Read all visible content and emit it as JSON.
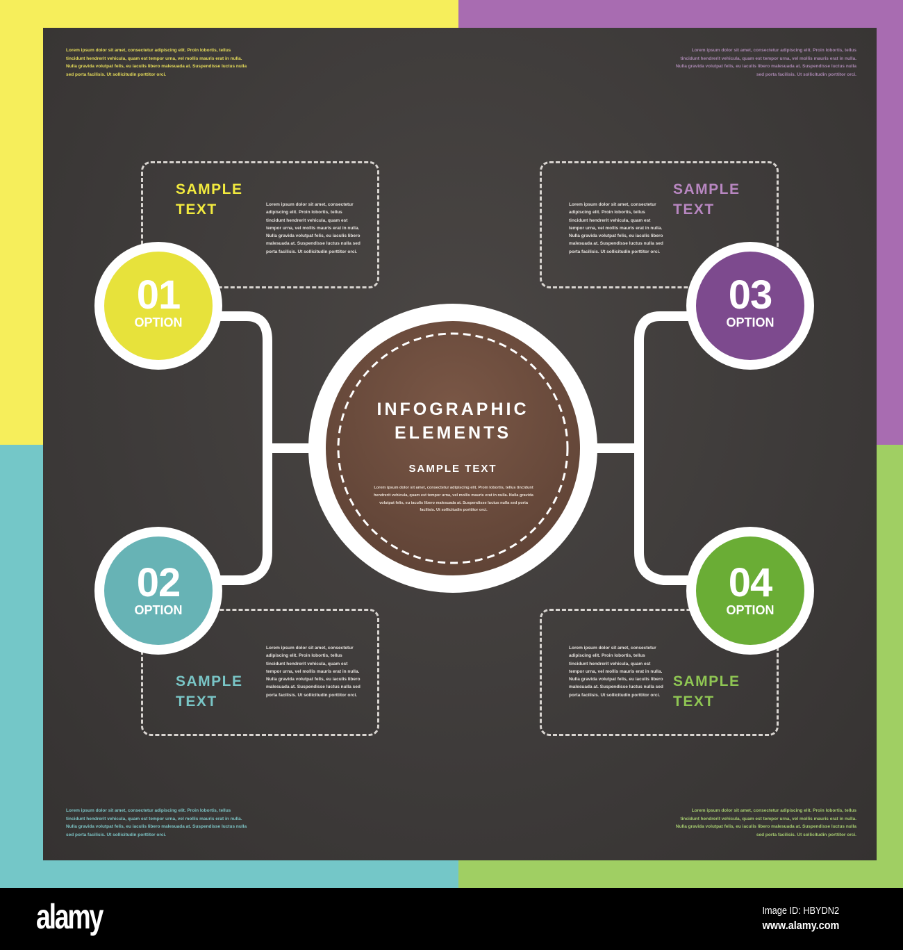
{
  "colors": {
    "yellow": "#f6ee5b",
    "purple": "#a86cb1",
    "teal": "#74c7c8",
    "green": "#a0cf63",
    "panel": "#3f3b3a",
    "center": "#6e4e3e"
  },
  "corners": {
    "top_left": "Lorem ipsum dolor sit amet, consectetur adipiscing elit. Proin lobortis, tellus tincidunt hendrerit vehicula, quam est tempor urna, vel mollis mauris erat in nulla. Nulla gravida volutpat felis, eu iaculis libero malesuada at. Suspendisse luctus nulla sed porta facilisis. Ut sollicitudin porttitor orci.",
    "top_right": "Lorem ipsum dolor sit amet, consectetur adipiscing elit. Proin lobortis, tellus tincidunt hendrerit vehicula, quam est tempor urna, vel mollis mauris erat in nulla. Nulla gravida volutpat felis, eu iaculis libero malesuada at. Suspendisse luctus nulla sed porta facilisis. Ut sollicitudin porttitor orci.",
    "bottom_left": "Lorem ipsum dolor sit amet, consectetur adipiscing elit. Proin lobortis, tellus tincidunt hendrerit vehicula, quam est tempor urna, vel mollis mauris erat in nulla. Nulla gravida volutpat felis, eu iaculis libero malesuada at. Suspendisse luctus nulla sed porta facilisis. Ut sollicitudin porttitor orci.",
    "bottom_right": "Lorem ipsum dolor sit amet, consectetur adipiscing elit. Proin lobortis, tellus tincidunt hendrerit vehicula, quam est tempor urna, vel mollis mauris erat in nulla. Nulla gravida volutpat felis, eu iaculis libero malesuada at. Suspendisse luctus nulla sed porta facilisis. Ut sollicitudin porttitor orci."
  },
  "center": {
    "title_line1": "INFOGRAPHIC",
    "title_line2": "ELEMENTS",
    "subtitle": "SAMPLE TEXT",
    "body": "Lorem ipsum dolor sit amet, consectetur adipiscing elit. Proin lobortis, tellus tincidunt hendrerit vehicula, quam est tempor urna, vel mollis mauris erat in nulla. Nulla gravida volutpat felis, eu iaculis libero malesuada at. Suspendisse luctus nulla sed porta facilisis. Ut sollicitudin porttitor orci."
  },
  "options": [
    {
      "number": "01",
      "label": "OPTION",
      "heading_line1": "SAMPLE",
      "heading_line2": "TEXT",
      "body": "Lorem ipsum dolor sit amet, consectetur adipiscing elit. Proin lobortis, tellus tincidunt hendrerit vehicula, quam est tempor urna, vel mollis mauris erat in nulla. Nulla gravida volutpat felis, eu iaculis libero malesuada at. Suspendisse luctus nulla sed porta facilisis. Ut sollicitudin porttitor orci."
    },
    {
      "number": "02",
      "label": "OPTION",
      "heading_line1": "SAMPLE",
      "heading_line2": "TEXT",
      "body": "Lorem ipsum dolor sit amet, consectetur adipiscing elit. Proin lobortis, tellus tincidunt hendrerit vehicula, quam est tempor urna, vel mollis mauris erat in nulla. Nulla gravida volutpat felis, eu iaculis libero malesuada at. Suspendisse luctus nulla sed porta facilisis. Ut sollicitudin porttitor orci."
    },
    {
      "number": "03",
      "label": "OPTION",
      "heading_line1": "SAMPLE",
      "heading_line2": "TEXT",
      "body": "Lorem ipsum dolor sit amet, consectetur adipiscing elit. Proin lobortis, tellus tincidunt hendrerit vehicula, quam est tempor urna, vel mollis mauris erat in nulla. Nulla gravida volutpat felis, eu iaculis libero malesuada at. Suspendisse luctus nulla sed porta facilisis. Ut sollicitudin porttitor orci."
    },
    {
      "number": "04",
      "label": "OPTION",
      "heading_line1": "SAMPLE",
      "heading_line2": "TEXT",
      "body": "Lorem ipsum dolor sit amet, consectetur adipiscing elit. Proin lobortis, tellus tincidunt hendrerit vehicula, quam est tempor urna, vel mollis mauris erat in nulla. Nulla gravida volutpat felis, eu iaculis libero malesuada at. Suspendisse luctus nulla sed porta facilisis. Ut sollicitudin porttitor orci."
    }
  ],
  "footer": {
    "logo": "alamy",
    "image_id": "Image ID: HBYDN2",
    "site": "www.alamy.com"
  }
}
